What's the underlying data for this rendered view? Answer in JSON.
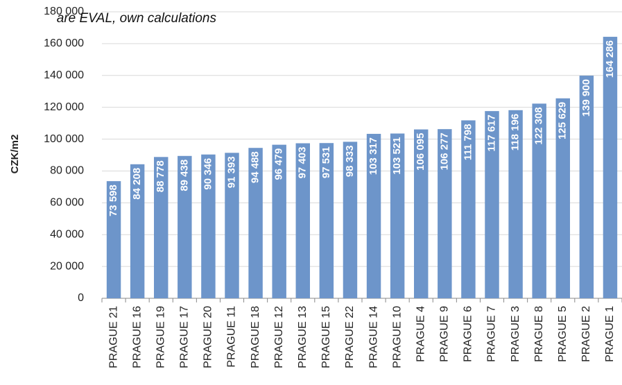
{
  "chart_data": {
    "type": "bar",
    "note": "are EVAL, own calculations",
    "y_label": "CZK/m2",
    "categories": [
      "PRAGUE 21",
      "PRAGUE 16",
      "PRAGUE 19",
      "PRAGUE 17",
      "PRAGUE 20",
      "PRAGUE 11",
      "PRAGUE 18",
      "PRAGUE 12",
      "PRAGUE 13",
      "PRAGUE 15",
      "PRAGUE 22",
      "PRAGUE 14",
      "PRAGUE 10",
      "PRAGUE 4",
      "PRAGUE 9",
      "PRAGUE 6",
      "PRAGUE 7",
      "PRAGUE 3",
      "PRAGUE 8",
      "PRAGUE 5",
      "PRAGUE 2",
      "PRAGUE 1"
    ],
    "values": [
      73598,
      84208,
      88778,
      89438,
      90346,
      91393,
      94488,
      96479,
      97403,
      97531,
      98333,
      103317,
      103521,
      106095,
      106277,
      111798,
      117617,
      118196,
      122308,
      125629,
      139900,
      164286
    ],
    "value_labels": [
      "73 598",
      "84 208",
      "88 778",
      "89 438",
      "90 346",
      "91 393",
      "94 488",
      "96 479",
      "97 403",
      "97 531",
      "98 333",
      "103 317",
      "103 521",
      "106 095",
      "106 277",
      "111 798",
      "117 617",
      "118 196",
      "122 308",
      "125 629",
      "139 900",
      "164 286"
    ],
    "color": "#6d95ca",
    "ylim": [
      0,
      180000
    ],
    "yticks": [
      0,
      {
        "value": 20000,
        "label": "20 000"
      },
      {
        "value": 40000,
        "label": "40 000"
      },
      {
        "value": 60000,
        "label": "60 000"
      },
      {
        "value": 80000,
        "label": "80 000"
      },
      {
        "value": 100000,
        "label": "100 000"
      },
      {
        "value": 120000,
        "label": "120 000"
      },
      {
        "value": 140000,
        "label": "140 000"
      },
      {
        "value": 160000,
        "label": "160 000"
      },
      {
        "value": 180000,
        "label": "180 000"
      }
    ],
    "grid": true
  }
}
